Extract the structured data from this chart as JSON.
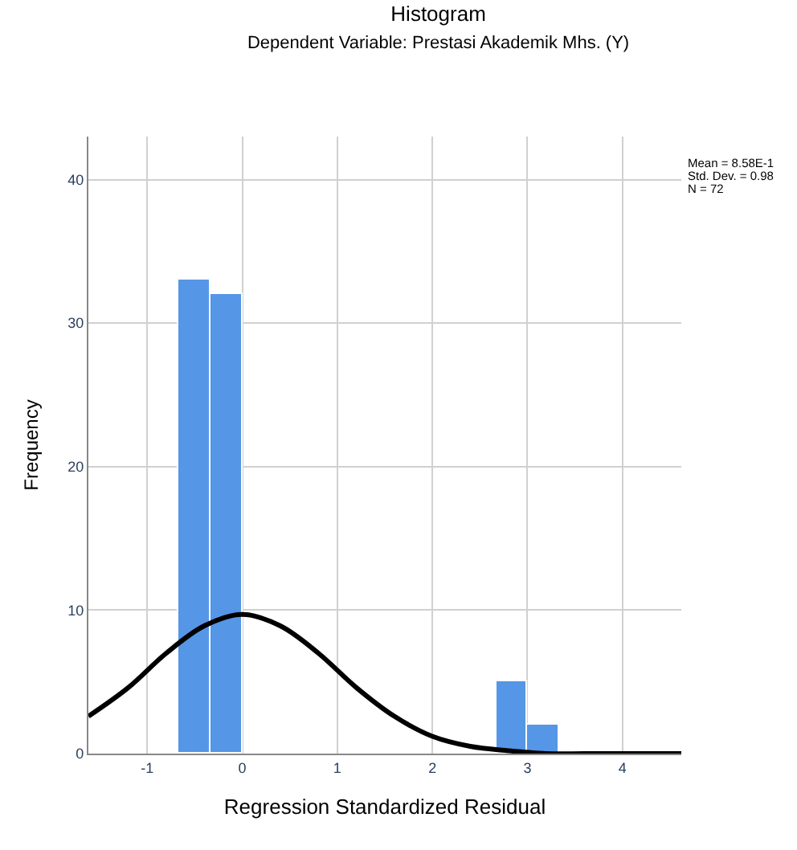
{
  "chart_data": {
    "type": "histogram",
    "title": "Histogram",
    "subtitle": "Dependent Variable: Prestasi Akademik Mhs. (Y)",
    "xlabel": "Regression Standardized Residual",
    "ylabel": "Frequency",
    "bins": [
      -0.667,
      -0.333,
      0,
      0.333,
      0.667,
      1,
      1.333,
      1.667,
      2,
      2.333,
      2.667,
      3,
      3.333
    ],
    "values": [
      33,
      32,
      0,
      0,
      0,
      0,
      0,
      0,
      0,
      0,
      5,
      2
    ],
    "color": "#5596e6",
    "series": [
      {
        "type": "line",
        "color": "#000000",
        "x": [
          -1.62,
          -1.2,
          -0.8,
          -0.4,
          0,
          0.4,
          0.8,
          1.2,
          1.6,
          2.0,
          2.4,
          2.8,
          3.2,
          3.6,
          4.0,
          4.62
        ],
        "values": [
          2.6,
          4.6,
          7.0,
          8.9,
          9.7,
          8.9,
          7.0,
          4.6,
          2.6,
          1.2,
          0.5,
          0.2,
          0.0,
          0.0,
          0.0,
          0.0
        ]
      }
    ],
    "xlim": [
      -1.62,
      4.62
    ],
    "xticks": [
      -1,
      0,
      1,
      2,
      3,
      4
    ],
    "ylim": [
      0,
      43
    ],
    "yticks": [
      0,
      10,
      20,
      30,
      40
    ],
    "annotations": [
      "Mean = 8.58E-1",
      "Std. Dev. = 0.98",
      "N = 72"
    ],
    "grid": true
  }
}
